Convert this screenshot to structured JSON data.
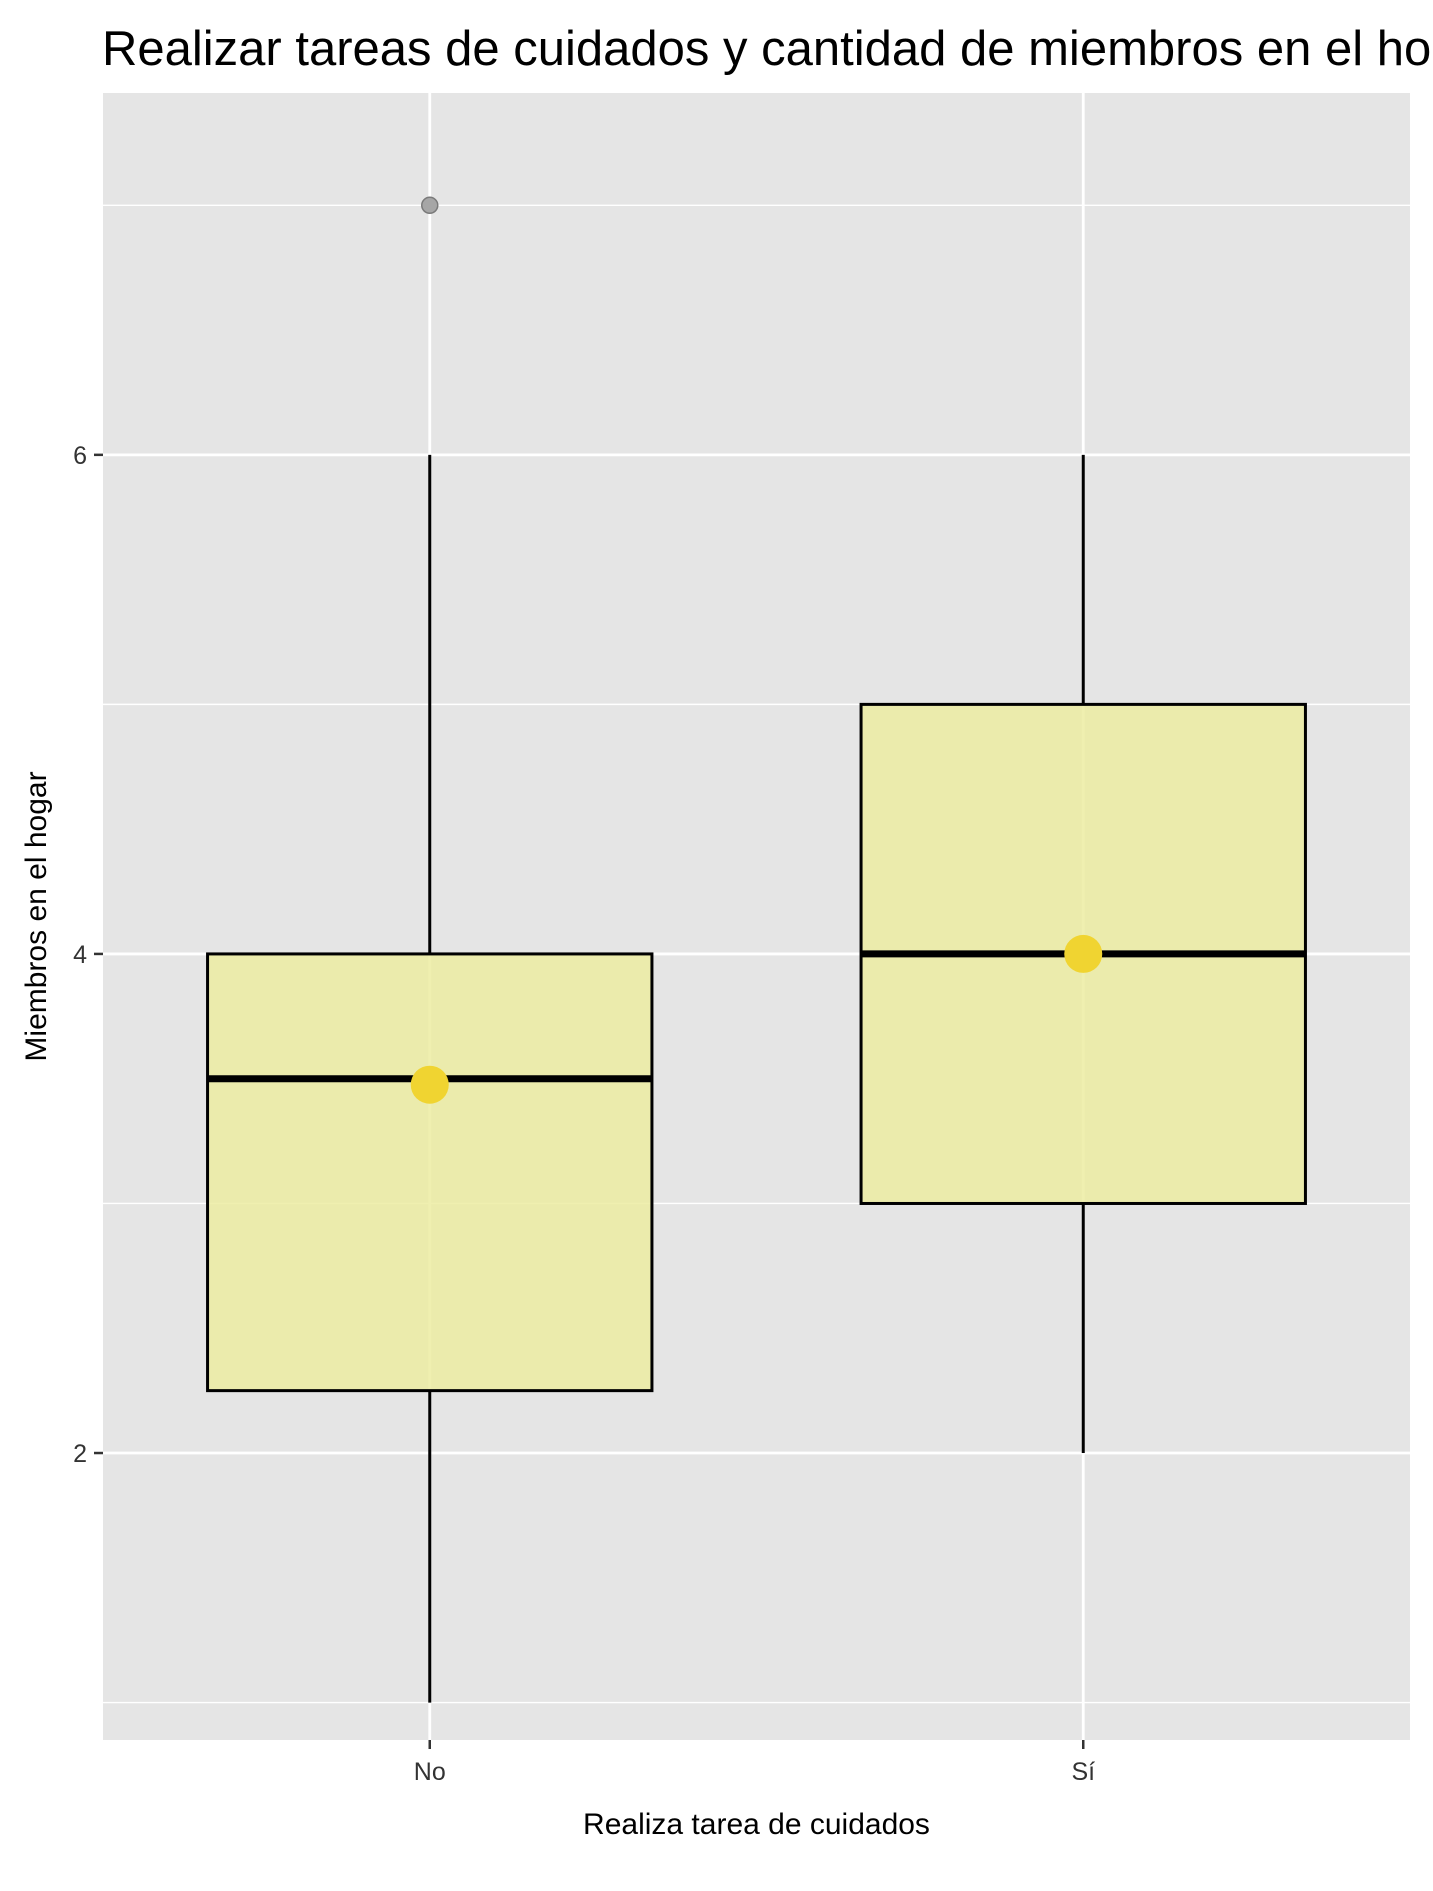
{
  "chart_data": {
    "type": "boxplot",
    "title": "Realizar tareas de cuidados y cantidad de miembros en el hogar",
    "xlabel": "Realiza tarea de cuidados",
    "ylabel": "Miembros en el hogar",
    "categories": [
      "No",
      "Sí"
    ],
    "boxes": [
      {
        "category": "No",
        "min": 1,
        "q1": 2.25,
        "median": 3.5,
        "q3": 4,
        "max": 6,
        "mean": 3.5,
        "outliers": [
          7
        ]
      },
      {
        "category": "Sí",
        "min": 2,
        "q1": 3,
        "median": 4,
        "q3": 5,
        "max": 6,
        "mean": 4,
        "outliers": []
      }
    ],
    "yticks": [
      2,
      4,
      6
    ],
    "ylim": [
      0.85,
      7.45
    ],
    "grid": true,
    "legend": "none",
    "colors": {
      "panel_background": "#e5e5e5",
      "grid_line": "#ffffff",
      "box_fill": "#ecec9f",
      "box_outline": "#000000",
      "mean_point": "#f0d431",
      "outlier_point": "#a6a6a6"
    }
  }
}
